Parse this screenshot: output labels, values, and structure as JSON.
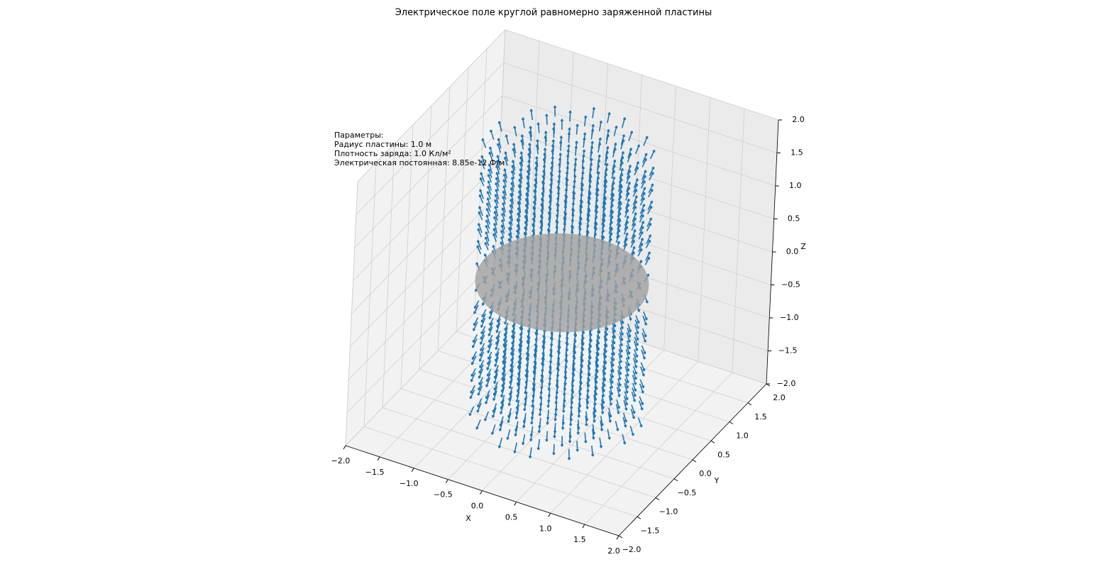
{
  "chart_data": {
    "type": "quiver3d",
    "title": "Электрическое поле круглой равномерно заряженной пластины",
    "xlabel": "X",
    "ylabel": "Y",
    "zlabel": "Z",
    "xlim": [
      -2,
      2
    ],
    "ylim": [
      -2,
      2
    ],
    "zlim": [
      -2,
      2
    ],
    "xticks": [
      {
        "value": -2,
        "label": "−2.0"
      },
      {
        "value": -1.5,
        "label": "−1.5"
      },
      {
        "value": -1,
        "label": "−1.0"
      },
      {
        "value": -0.5,
        "label": "−0.5"
      },
      {
        "value": 0,
        "label": "0.0"
      },
      {
        "value": 0.5,
        "label": "0.5"
      },
      {
        "value": 1,
        "label": "1.0"
      },
      {
        "value": 1.5,
        "label": "1.5"
      },
      {
        "value": 2,
        "label": "2.0"
      }
    ],
    "yticks": [
      {
        "value": -2,
        "label": "−2.0"
      },
      {
        "value": -1.5,
        "label": "−1.5"
      },
      {
        "value": -1,
        "label": "−1.0"
      },
      {
        "value": -0.5,
        "label": "−0.5"
      },
      {
        "value": 0,
        "label": "0.0"
      },
      {
        "value": 0.5,
        "label": "0.5"
      },
      {
        "value": 1,
        "label": "1.0"
      },
      {
        "value": 1.5,
        "label": "1.5"
      },
      {
        "value": 2,
        "label": "2.0"
      }
    ],
    "zticks": [
      {
        "value": -2,
        "label": "−2.0"
      },
      {
        "value": -1.5,
        "label": "−1.5"
      },
      {
        "value": -1,
        "label": "−1.0"
      },
      {
        "value": -0.5,
        "label": "−0.5"
      },
      {
        "value": 0,
        "label": "0.0"
      },
      {
        "value": 0.5,
        "label": "0.5"
      },
      {
        "value": 1,
        "label": "1.0"
      },
      {
        "value": 1.5,
        "label": "1.5"
      },
      {
        "value": 2,
        "label": "2.0"
      }
    ],
    "annotation": [
      "Параметры:",
      "Радиус пластины: 1.0 м",
      "Плотность заряда: 1.0 Кл/м²",
      "Электрическая постоянная: 8.85e-12 Ф/м"
    ],
    "color": "#1f77b4",
    "plate_color": "#a0a0a0",
    "grid": true
  }
}
